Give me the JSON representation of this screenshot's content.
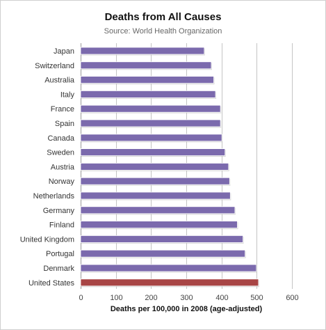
{
  "chart_data": {
    "type": "bar",
    "orientation": "horizontal",
    "title": "Deaths from All Causes",
    "subtitle": "Source: World Health Organization",
    "xlabel": "Deaths per 100,000 in 2008 (age-adjusted)",
    "xlim": [
      0,
      600
    ],
    "xticks": [
      0,
      100,
      200,
      300,
      400,
      500,
      600
    ],
    "grid": true,
    "legend": "none",
    "categories": [
      "Japan",
      "Switzerland",
      "Australia",
      "Italy",
      "France",
      "Spain",
      "Canada",
      "Sweden",
      "Austria",
      "Norway",
      "Netherlands",
      "Germany",
      "Finland",
      "United Kingdom",
      "Portugal",
      "Denmark",
      "United States"
    ],
    "values": [
      351,
      371,
      378,
      383,
      397,
      397,
      401,
      410,
      420,
      423,
      425,
      438,
      445,
      461,
      467,
      499,
      505
    ],
    "colors": {
      "default": "#7b6aad",
      "highlight": "#a84545",
      "highlight_category": "United States",
      "grid": "#c4c4c4"
    }
  }
}
